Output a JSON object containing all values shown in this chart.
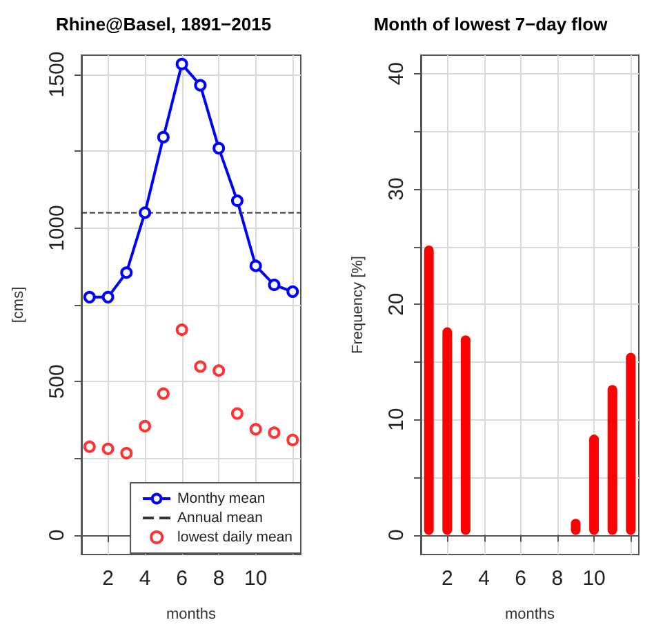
{
  "chart_data": [
    {
      "type": "line",
      "title": "Rhine@Basel, 1891−2015",
      "xlabel": "months",
      "ylabel": "[cms]",
      "x": [
        1,
        2,
        3,
        4,
        5,
        6,
        7,
        8,
        9,
        10,
        11,
        12
      ],
      "series": [
        {
          "name": "Monthy mean",
          "color": "#0000ff",
          "marker": "circle",
          "values": [
            775,
            775,
            855,
            1050,
            1296,
            1534,
            1465,
            1260,
            1089,
            877,
            815,
            793
          ]
        },
        {
          "name": "lowest daily mean",
          "color": "#ff0000",
          "type": "scatter",
          "marker": "circle",
          "values": [
            288,
            281,
            267,
            355,
            461,
            669,
            549,
            536,
            396,
            345,
            334,
            310
          ]
        }
      ],
      "ref_lines": [
        {
          "axis": "y",
          "value": 1050,
          "label": "Annual mean",
          "color": "#333333",
          "line_style": "dashed"
        }
      ],
      "xlim": [
        0.56,
        12.44
      ],
      "xticks": [
        2,
        4,
        6,
        8,
        10,
        {
          "value": 12,
          "label": null
        }
      ],
      "ylim": [
        -63,
        1563
      ],
      "yticks": [
        0,
        {
          "value": 250,
          "label": null
        },
        500,
        {
          "value": 750,
          "label": null
        },
        1000,
        {
          "value": 1250,
          "label": null
        },
        1500
      ],
      "grid": true,
      "legend": "bottom right"
    },
    {
      "type": "bar",
      "title": "Month of lowest 7−day flow",
      "xlabel": "months",
      "ylabel": "Frequency [%]",
      "x": [
        1,
        2,
        3,
        4,
        5,
        6,
        7,
        8,
        9,
        10,
        11,
        12
      ],
      "values": [
        25.1,
        18.0,
        17.3,
        0,
        0,
        0,
        0,
        0,
        1.4,
        8.7,
        13.0,
        15.8
      ],
      "color": "#ff0000",
      "xlim": [
        0.56,
        12.44
      ],
      "xticks": [
        2,
        4,
        6,
        8,
        10,
        {
          "value": 12,
          "label": null
        }
      ],
      "ylim": [
        -1.7,
        41.6
      ],
      "yticks": [
        0,
        {
          "value": 5,
          "label": null
        },
        10,
        {
          "value": 15,
          "label": null
        },
        20,
        {
          "value": 25,
          "label": null
        },
        30,
        {
          "value": 35,
          "label": null
        },
        40
      ],
      "grid": true
    }
  ]
}
